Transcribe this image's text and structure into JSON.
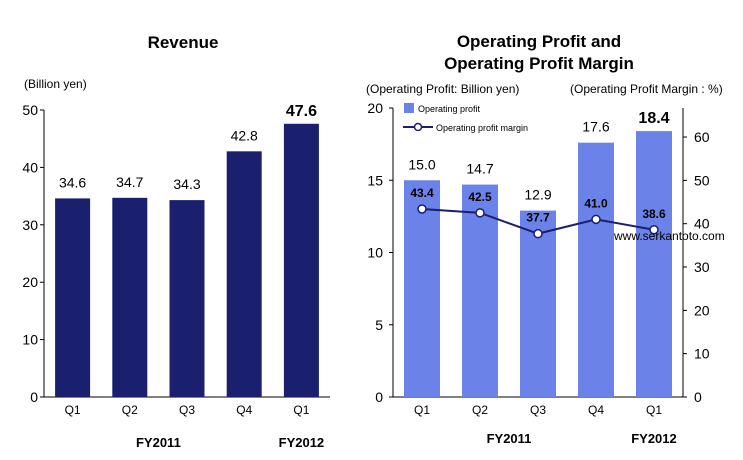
{
  "chart_data": [
    {
      "type": "bar",
      "title": "Revenue",
      "unit_label": "(Billion yen)",
      "categories": [
        "Q1",
        "Q2",
        "Q3",
        "Q4",
        "Q1"
      ],
      "groups": [
        {
          "label": "FY2011",
          "categories": [
            0,
            1,
            2,
            3
          ]
        },
        {
          "label": "FY2012",
          "categories": [
            4
          ]
        }
      ],
      "values": [
        34.6,
        34.7,
        34.3,
        42.8,
        47.6
      ],
      "value_labels": [
        "34.6",
        "34.7",
        "34.3",
        "42.8",
        "47.6"
      ],
      "highlight_index": 4,
      "ylim": [
        0,
        50
      ],
      "yticks": [
        "0",
        "10",
        "20",
        "30",
        "40",
        "50"
      ],
      "bar_color": "#1a1f6e",
      "grid": false
    },
    {
      "type": "bar+line",
      "title_lines": [
        "Operating Profit and",
        "Operating Profit Margin"
      ],
      "left_unit_label": "(Operating Profit: Billion yen)",
      "right_unit_label": "(Operating Profit Margin : %)",
      "categories": [
        "Q1",
        "Q2",
        "Q3",
        "Q4",
        "Q1"
      ],
      "groups": [
        {
          "label": "FY2011",
          "categories": [
            0,
            1,
            2,
            3
          ]
        },
        {
          "label": "FY2012",
          "categories": [
            4
          ]
        }
      ],
      "series": [
        {
          "name": "Operating profit",
          "type": "bar",
          "axis": "left",
          "values": [
            15.0,
            14.7,
            12.9,
            17.6,
            18.4
          ],
          "value_labels": [
            "15.0",
            "14.7",
            "12.9",
            "17.6",
            "18.4"
          ],
          "color": "#6b82e8"
        },
        {
          "name": "Operating profit margin",
          "type": "line",
          "axis": "right",
          "values": [
            43.4,
            42.5,
            37.7,
            41.0,
            38.6
          ],
          "value_labels": [
            "43.4",
            "42.5",
            "37.7",
            "41.0",
            "38.6"
          ],
          "color": "#1a1f6e"
        }
      ],
      "highlight_index": 4,
      "ylim_left": [
        0,
        20
      ],
      "yticks_left": [
        "0",
        "5",
        "10",
        "15",
        "20"
      ],
      "ylim_right": [
        0,
        66.7
      ],
      "yticks_right": [
        "0",
        "10",
        "20",
        "30",
        "40",
        "50",
        "60"
      ],
      "legend_position": "top-left",
      "grid": false
    }
  ],
  "watermark": "www.serkantoto.com"
}
